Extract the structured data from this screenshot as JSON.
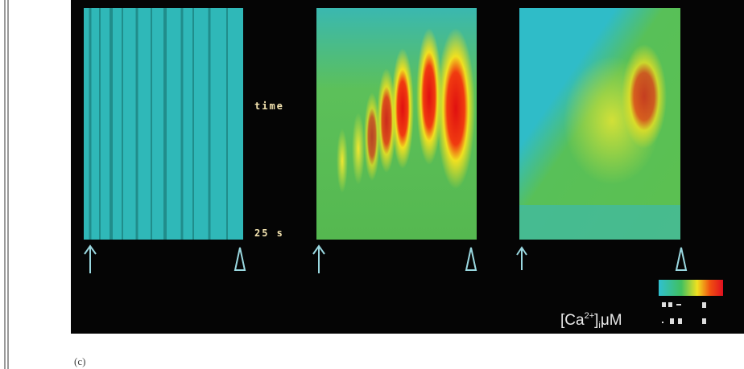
{
  "figure": {
    "time_label": "time",
    "duration_label": "25 s",
    "scale_label": {
      "open": "[Ca",
      "superscript": "2+",
      "close": "]",
      "subscript": "i",
      "unit": "μM"
    },
    "panel_letter": "(c)"
  }
}
